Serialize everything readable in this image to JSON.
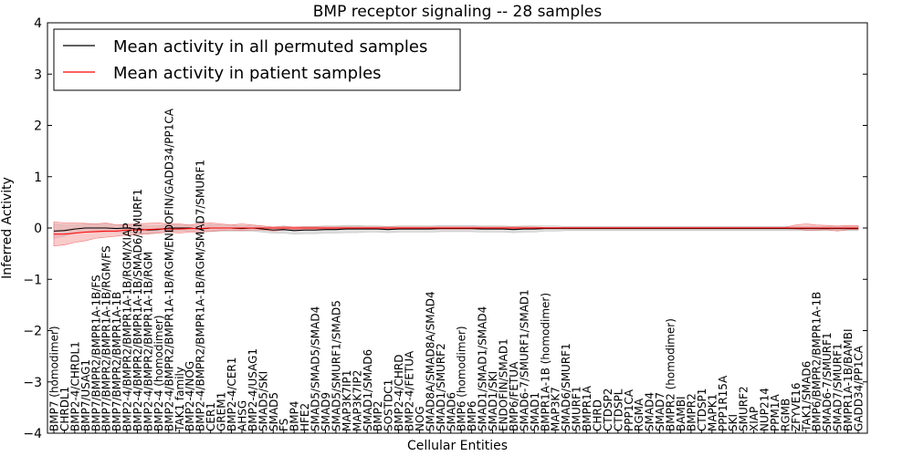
{
  "chart_data": {
    "type": "line",
    "title": "BMP receptor signaling -- 28 samples",
    "xlabel": "Cellular Entities",
    "ylabel": "Inferred Activity",
    "ylim": [
      -4,
      4
    ],
    "yticks": [
      -4,
      -3,
      -2,
      -1,
      0,
      1,
      2,
      3,
      4
    ],
    "legend_position": "top-left",
    "colors": {
      "permuted": "#000000",
      "patient": "#ff0000",
      "patient_band": "#f4a0a0",
      "permuted_band": "#cccccc"
    },
    "categories": [
      "BMP7 (homodimer)",
      "CHRDL1",
      "BMP2-4/CHRDL1",
      "BMP7/USAG1",
      "BMP7/BMPR2/BMPR1A-1B/FS",
      "BMP7/BMPR2/BMPR1A-1B/RGM/FS",
      "BMP7/BMPR2/BMPR1A-1B",
      "BMP2-4/BMPR2/BMPR1A-1B/RGM/XIAP",
      "BMP2-4/BMPR2/BMPR1A-1B/SMAD6/SMURF1",
      "BMP2-4/BMPR2/BMPR1A-1B/RGM",
      "BMP2-4 (homodimer)",
      "BMP2-4/BMPR2/BMPR1A-1B/RGM/ENDOFIN/GADD34/PP1CA",
      "TAK1 family",
      "BMP2-4/NOG",
      "BMP2-4/BMPR2/BMPR1A-1B/RGM/SMAD7/SMURF1",
      "CER1",
      "GREM1",
      "BMP2-4/CER1",
      "AHSG",
      "BMP2-4/USAG1",
      "SMAD5/SKI",
      "SMAD5",
      "FS",
      "BMP4",
      "HFE2",
      "SMAD5/SMAD5/SMAD4",
      "SMAD9",
      "SMAD5/SMURF1/SMAD5",
      "MAP3K7IP1",
      "MAP3K7IP2",
      "SMAD1/SMAD6",
      "BMP2",
      "SOSTDC1",
      "BMP2-4/CHRD",
      "BMP2-4/FETUA",
      "NOG",
      "SMAD8A/SMAD8A/SMAD4",
      "SMAD1/SMURF2",
      "SMAD6",
      "BMP6 (homodimer)",
      "BMP6",
      "SMAD1/SMAD1/SMAD4",
      "SMAD1/SKI",
      "ENDOFIN/SMAD1",
      "BMP6/FETUA",
      "SMAD6-7/SMURF1/SMAD1",
      "SMAD1",
      "BMPR1A-1B (homodimer)",
      "MAP3K7",
      "SMAD6/SMURF1",
      "SMURF1",
      "BMPR1A",
      "CHRD",
      "CTDSP2",
      "CTDSPL",
      "PPP1CA",
      "RGMA",
      "SMAD4",
      "SMAD7",
      "BMPR2 (homodimer)",
      "BAMBI",
      "BMPR2",
      "CTDSP1",
      "MAPK1",
      "PPP1R15A",
      "SKI",
      "SMURF2",
      "XIAP",
      "NUP214",
      "PPM1A",
      "RGMB",
      "ZFYVE16",
      "TAK1/SMAD6",
      "BMP6/BMPR2/BMPR1A-1B",
      "SMAD6-7/SMURF1",
      "SMAD7/SMURF1",
      "BMPR1A-1B/BAMBI",
      "GADD34/PP1CA"
    ],
    "series": [
      {
        "name": "Mean activity in all permuted samples",
        "color": "#000000",
        "values": [
          -0.06,
          -0.05,
          -0.02,
          0.0,
          0.0,
          0.0,
          -0.01,
          0.0,
          -0.02,
          -0.04,
          -0.03,
          0.0,
          0.0,
          0.0,
          -0.02,
          0.0,
          0.0,
          0.0,
          -0.01,
          0.0,
          -0.02,
          -0.04,
          -0.03,
          -0.05,
          -0.04,
          -0.04,
          -0.03,
          -0.03,
          -0.02,
          -0.02,
          -0.02,
          -0.02,
          -0.03,
          -0.02,
          -0.02,
          -0.02,
          -0.02,
          -0.01,
          -0.01,
          -0.01,
          -0.01,
          -0.02,
          -0.02,
          -0.02,
          -0.03,
          -0.02,
          -0.02,
          -0.01,
          -0.01,
          -0.01,
          -0.01,
          -0.01,
          -0.01,
          -0.01,
          -0.01,
          -0.01,
          -0.01,
          -0.01,
          -0.01,
          -0.01,
          -0.01,
          -0.01,
          -0.01,
          -0.01,
          -0.01,
          -0.01,
          -0.01,
          -0.01,
          -0.01,
          -0.01,
          -0.01,
          -0.01,
          -0.01,
          -0.01,
          -0.01,
          -0.01,
          -0.01,
          -0.01
        ],
        "lower": [
          -0.2,
          -0.16,
          -0.1,
          -0.08,
          -0.08,
          -0.08,
          -0.08,
          -0.08,
          -0.1,
          -0.12,
          -0.1,
          -0.08,
          -0.06,
          -0.06,
          -0.08,
          -0.07,
          -0.06,
          -0.06,
          -0.06,
          -0.06,
          -0.08,
          -0.1,
          -0.1,
          -0.12,
          -0.11,
          -0.11,
          -0.1,
          -0.1,
          -0.09,
          -0.09,
          -0.08,
          -0.08,
          -0.09,
          -0.08,
          -0.08,
          -0.08,
          -0.08,
          -0.07,
          -0.07,
          -0.07,
          -0.07,
          -0.08,
          -0.08,
          -0.08,
          -0.09,
          -0.08,
          -0.08,
          -0.06,
          -0.06,
          -0.05,
          -0.05,
          -0.05,
          -0.05,
          -0.05,
          -0.05,
          -0.05,
          -0.05,
          -0.05,
          -0.05,
          -0.05,
          -0.05,
          -0.05,
          -0.05,
          -0.05,
          -0.05,
          -0.05,
          -0.05,
          -0.05,
          -0.05,
          -0.05,
          -0.05,
          -0.05,
          -0.05,
          -0.05,
          -0.05,
          -0.05,
          -0.05,
          -0.05
        ],
        "upper": [
          0.08,
          0.06,
          0.06,
          0.08,
          0.08,
          0.08,
          0.06,
          0.08,
          0.06,
          0.04,
          0.04,
          0.08,
          0.06,
          0.06,
          0.04,
          0.07,
          0.06,
          0.06,
          0.04,
          0.06,
          0.04,
          0.02,
          0.04,
          0.02,
          0.03,
          0.03,
          0.04,
          0.04,
          0.05,
          0.05,
          0.04,
          0.04,
          0.03,
          0.04,
          0.04,
          0.04,
          0.04,
          0.05,
          0.05,
          0.05,
          0.05,
          0.04,
          0.04,
          0.04,
          0.03,
          0.04,
          0.04,
          0.04,
          0.04,
          0.03,
          0.03,
          0.03,
          0.03,
          0.03,
          0.03,
          0.03,
          0.03,
          0.03,
          0.03,
          0.03,
          0.03,
          0.03,
          0.03,
          0.03,
          0.03,
          0.03,
          0.03,
          0.03,
          0.03,
          0.03,
          0.03,
          0.03,
          0.03,
          0.03,
          0.03,
          0.03,
          0.03,
          0.03
        ]
      },
      {
        "name": "Mean activity in patient samples",
        "color": "#ff0000",
        "values": [
          -0.12,
          -0.12,
          -0.1,
          -0.08,
          -0.07,
          -0.06,
          -0.06,
          -0.04,
          -0.04,
          -0.03,
          -0.02,
          -0.02,
          -0.02,
          -0.01,
          -0.01,
          0.0,
          0.0,
          0.0,
          0.0,
          0.0,
          0.0,
          0.0,
          0.0,
          0.0,
          0.0,
          0.0,
          0.0,
          0.0,
          0.0,
          0.0,
          0.0,
          0.0,
          0.0,
          0.0,
          0.0,
          0.0,
          0.0,
          0.0,
          0.0,
          0.0,
          0.0,
          0.0,
          0.0,
          0.0,
          0.0,
          0.0,
          0.0,
          0.0,
          0.0,
          0.0,
          0.0,
          0.0,
          0.0,
          0.0,
          0.0,
          0.0,
          0.0,
          0.0,
          0.0,
          0.0,
          0.0,
          0.0,
          0.0,
          0.0,
          0.0,
          0.0,
          0.0,
          0.0,
          0.0,
          0.0,
          0.0,
          0.0,
          0.0,
          0.0,
          0.0,
          0.0,
          0.0,
          0.0
        ],
        "lower": [
          -0.35,
          -0.33,
          -0.28,
          -0.25,
          -0.2,
          -0.18,
          -0.16,
          -0.14,
          -0.13,
          -0.11,
          -0.1,
          -0.08,
          -0.1,
          -0.08,
          -0.08,
          -0.06,
          -0.05,
          -0.04,
          -0.05,
          -0.04,
          -0.04,
          -0.06,
          -0.04,
          -0.03,
          -0.02,
          -0.02,
          -0.02,
          -0.02,
          -0.02,
          -0.02,
          -0.02,
          -0.02,
          -0.02,
          -0.02,
          -0.02,
          -0.02,
          -0.02,
          -0.02,
          -0.02,
          -0.02,
          -0.02,
          -0.02,
          -0.02,
          -0.02,
          -0.02,
          -0.02,
          -0.02,
          -0.01,
          -0.01,
          -0.01,
          -0.01,
          -0.01,
          -0.01,
          -0.01,
          -0.01,
          -0.01,
          -0.01,
          -0.01,
          -0.01,
          -0.01,
          -0.01,
          -0.01,
          -0.01,
          -0.01,
          -0.01,
          -0.01,
          -0.01,
          -0.01,
          -0.01,
          -0.01,
          -0.01,
          -0.02,
          -0.04,
          -0.04,
          -0.03,
          -0.06,
          -0.03,
          -0.03
        ],
        "upper": [
          0.12,
          0.1,
          0.1,
          0.09,
          0.08,
          0.1,
          0.06,
          0.07,
          0.08,
          0.09,
          0.1,
          0.08,
          0.08,
          0.06,
          0.09,
          0.1,
          0.08,
          0.06,
          0.08,
          0.06,
          0.04,
          0.02,
          0.03,
          0.02,
          0.02,
          0.02,
          0.02,
          0.02,
          0.02,
          0.02,
          0.02,
          0.02,
          0.02,
          0.02,
          0.02,
          0.02,
          0.02,
          0.02,
          0.02,
          0.02,
          0.02,
          0.02,
          0.02,
          0.02,
          0.02,
          0.02,
          0.02,
          0.01,
          0.01,
          0.01,
          0.01,
          0.01,
          0.01,
          0.01,
          0.01,
          0.01,
          0.01,
          0.01,
          0.01,
          0.01,
          0.01,
          0.01,
          0.01,
          0.01,
          0.01,
          0.01,
          0.01,
          0.01,
          0.01,
          0.01,
          0.01,
          0.06,
          0.08,
          0.06,
          0.05,
          0.04,
          0.05,
          0.05
        ]
      }
    ]
  }
}
